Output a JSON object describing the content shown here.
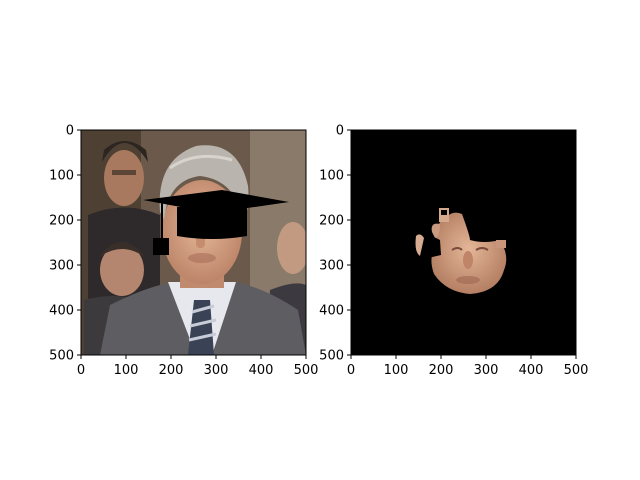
{
  "figure": {
    "panels": [
      {
        "name": "photo-with-graduation-cap",
        "image": "photo of an older man with gray hair in a suit and tie, black graduation cap overlay on his head",
        "x_ticks": [
          "0",
          "100",
          "200",
          "300",
          "400",
          "500"
        ],
        "y_ticks": [
          "0",
          "100",
          "200",
          "300",
          "400",
          "500"
        ],
        "xlim": [
          0,
          500
        ],
        "ylim": [
          500,
          0
        ]
      },
      {
        "name": "masked-face-segment",
        "image": "black background with only the segmented face region visible, cap tassel cut out",
        "x_ticks": [
          "0",
          "100",
          "200",
          "300",
          "400",
          "500"
        ],
        "y_ticks": [
          "0",
          "100",
          "200",
          "300",
          "400",
          "500"
        ],
        "xlim": [
          0,
          500
        ],
        "ylim": [
          500,
          0
        ]
      }
    ],
    "colors": {
      "background": "#ffffff",
      "mask_background": "#000000",
      "cap": "#000000",
      "skin": "#d9a88a",
      "hair": "#b8b4ac",
      "suit": "#5a5a5e",
      "shirt": "#e8eaf0",
      "backdrop": "#6a5848"
    }
  }
}
